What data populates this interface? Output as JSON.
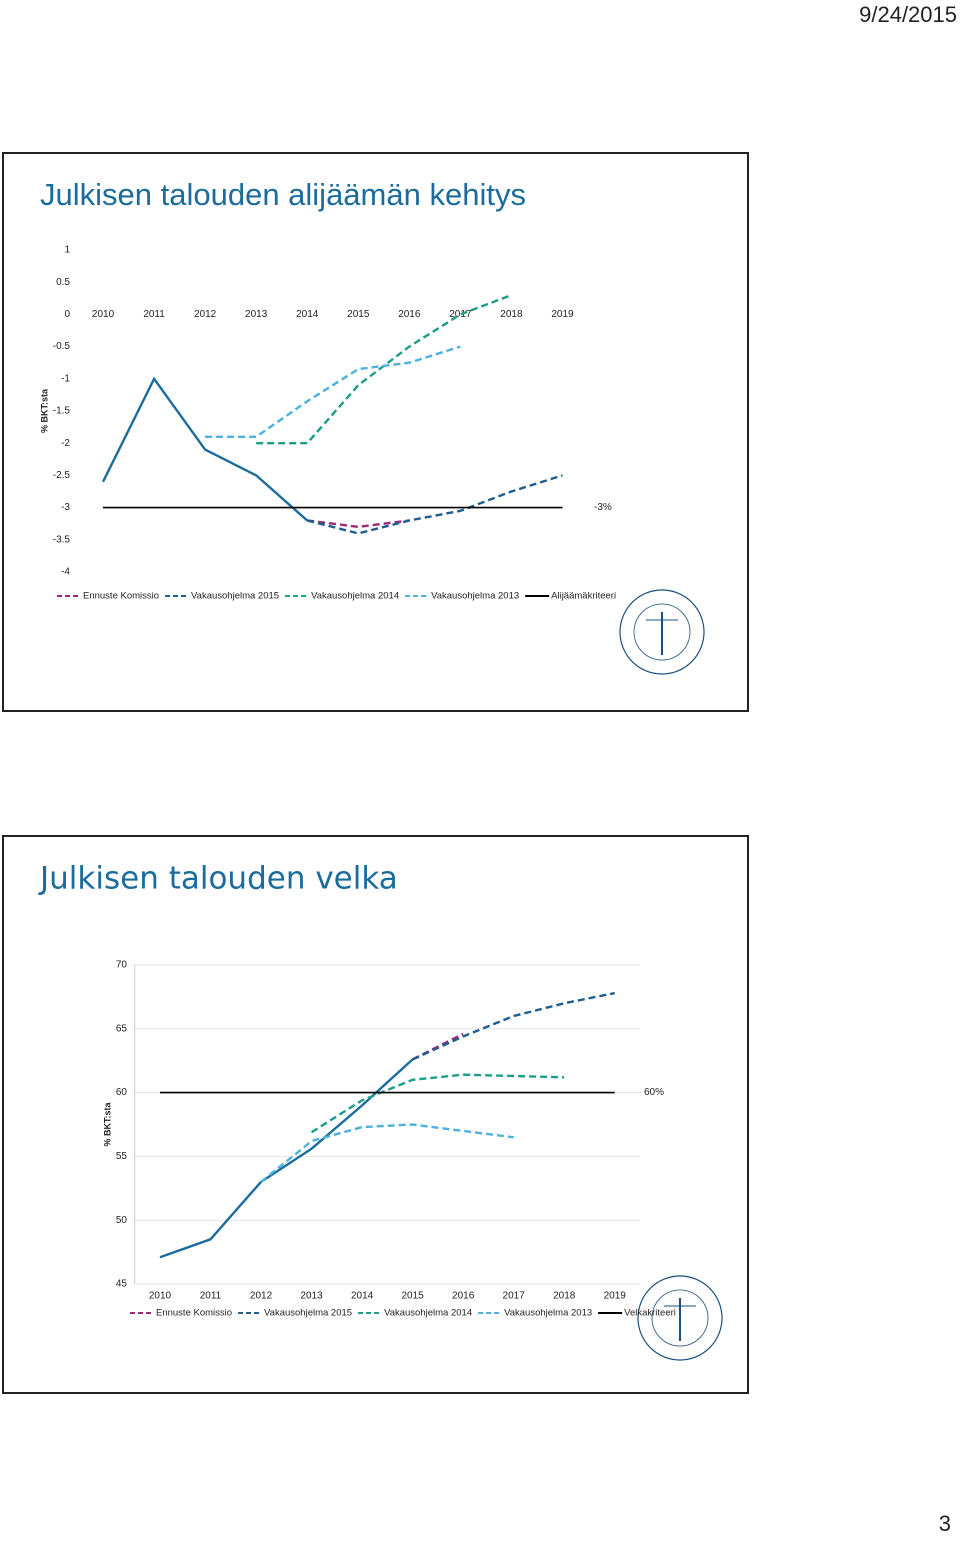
{
  "date": "9/24/2015",
  "page_number": "3",
  "chart_data": [
    {
      "type": "line",
      "title": "Julkisen talouden alijäämän kehitys",
      "y_label": "% BKT:sta",
      "categories": [
        "2010",
        "2011",
        "2012",
        "2013",
        "2014",
        "2015",
        "2016",
        "2017",
        "2018",
        "2019"
      ],
      "ylim": [
        -4,
        1
      ],
      "yticks": [
        1,
        0.5,
        0,
        -0.5,
        -1,
        -1.5,
        -2,
        -2.5,
        -3,
        -3.5,
        -4
      ],
      "grid": false,
      "annotation": "-3%",
      "series": [
        {
          "color": "#1b6c9c",
          "line_style": "solid",
          "values": [
            -2.6,
            -1.0,
            -2.1,
            -2.5,
            -3.2,
            null,
            null,
            null,
            null,
            null
          ]
        },
        {
          "name": "Ennuste Komissio",
          "color": "#a0287a",
          "line_style": "dashed",
          "values": [
            null,
            null,
            null,
            null,
            -3.2,
            -3.3,
            -3.2,
            null,
            null,
            null
          ]
        },
        {
          "name": "Vakausohjelma 2015",
          "color": "#1f5f8f",
          "line_style": "dashed",
          "values": [
            null,
            null,
            null,
            null,
            -3.2,
            -3.4,
            -3.2,
            -3.05,
            -2.75,
            -2.5
          ]
        },
        {
          "name": "Vakausohjelma 2014",
          "color": "#1a9e8a",
          "line_style": "dashed",
          "values": [
            null,
            null,
            null,
            -2.0,
            -2.0,
            -1.1,
            -0.5,
            0,
            0.3,
            null
          ]
        },
        {
          "name": "Vakausohjelma 2013",
          "color": "#4cb0e0",
          "line_style": "dashed",
          "values": [
            null,
            null,
            -1.9,
            -1.9,
            -1.35,
            -0.85,
            -0.75,
            -0.5,
            null,
            null
          ]
        },
        {
          "name": "Alijäämäkriteeri",
          "color": "#000000",
          "line_style": "solid",
          "values": [
            -3,
            -3,
            -3,
            -3,
            -3,
            -3,
            -3,
            -3,
            -3,
            -3
          ]
        }
      ]
    },
    {
      "type": "line",
      "title": "Julkisen talouden velka",
      "y_label": "% BKT:sta",
      "categories": [
        "2010",
        "2011",
        "2012",
        "2013",
        "2014",
        "2015",
        "2016",
        "2017",
        "2018",
        "2019"
      ],
      "ylim": [
        45,
        70
      ],
      "yticks": [
        70,
        65,
        60,
        55,
        50,
        45
      ],
      "grid": true,
      "annotation": "60%",
      "series": [
        {
          "color": "#1b6c9c",
          "line_style": "solid",
          "values": [
            47.1,
            48.5,
            53.0,
            55.6,
            59.0,
            62.6,
            null,
            null,
            null,
            null
          ]
        },
        {
          "name": "Ennuste Komissio",
          "color": "#a0287a",
          "line_style": "dashed",
          "values": [
            null,
            null,
            null,
            null,
            null,
            62.6,
            64.6,
            null,
            null,
            null
          ]
        },
        {
          "name": "Vakausohjelma 2015",
          "color": "#1f5f8f",
          "line_style": "dashed",
          "values": [
            null,
            null,
            null,
            null,
            null,
            62.6,
            64.4,
            66.0,
            67.0,
            67.8
          ]
        },
        {
          "name": "Vakausohjelma 2014",
          "color": "#1a9e8a",
          "line_style": "dashed",
          "values": [
            null,
            null,
            null,
            56.9,
            59.4,
            61.0,
            61.4,
            61.3,
            61.2,
            null
          ]
        },
        {
          "name": "Vakausohjelma 2013",
          "color": "#4cb0e0",
          "line_style": "dashed",
          "values": [
            null,
            null,
            53.0,
            56.2,
            57.3,
            57.5,
            57.0,
            56.5,
            null,
            null
          ]
        },
        {
          "name": "Velkakriteeri",
          "color": "#000000",
          "line_style": "solid",
          "values": [
            60,
            60,
            60,
            60,
            60,
            60,
            60,
            60,
            60,
            60
          ]
        }
      ]
    }
  ]
}
